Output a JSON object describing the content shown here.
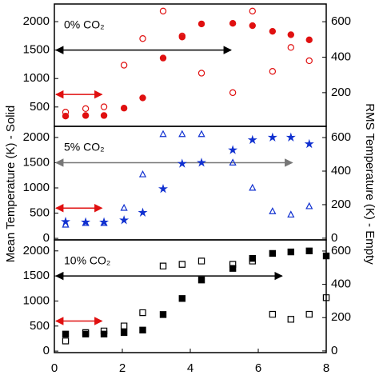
{
  "chart_data": [
    {
      "type": "scatter",
      "title": "0% CO₂",
      "ylabel": "Mean Temperature (K) - Solid",
      "y2label": "RMS Temperature (K) - Empty",
      "ylim": [
        160,
        2310
      ],
      "yticks": [
        500,
        1000,
        1500,
        2000
      ],
      "y2lim": [
        10,
        700
      ],
      "y2ticks": [
        200,
        400,
        600
      ],
      "xlim": [
        0,
        8
      ],
      "series": [
        {
          "color": "#e01010",
          "marker": "circle",
          "filled": true,
          "x": [
            0.33,
            0.92,
            1.46,
            2.05,
            2.6,
            3.2,
            3.76,
            4.33,
            5.25,
            5.83,
            6.42,
            6.96,
            7.5
          ],
          "values": [
            340,
            350,
            350,
            480,
            660,
            1360,
            1730,
            1960,
            1970,
            1930,
            1830,
            1770,
            1680
          ]
        },
        {
          "color": "#e01010",
          "marker": "circle",
          "filled": false,
          "axis": "y2",
          "x": [
            0.33,
            0.92,
            1.46,
            2.05,
            2.6,
            3.2,
            3.76,
            4.33,
            5.25,
            5.83,
            6.42,
            6.96,
            7.5
          ],
          "values": [
            90,
            110,
            120,
            355,
            505,
            660,
            520,
            310,
            200,
            660,
            320,
            455,
            380
          ]
        }
      ],
      "arrows": [
        {
          "y": 720,
          "x": [
            0,
            1.4
          ],
          "color": "#e01010"
        },
        {
          "y": 1500,
          "x": [
            0,
            5.2
          ],
          "color": "#000000"
        }
      ]
    },
    {
      "type": "scatter",
      "title": "5% CO₂",
      "ylim": [
        -30,
        2220
      ],
      "yticks": [
        0,
        500,
        1000,
        1500,
        2000
      ],
      "y2lim": [
        -10,
        667
      ],
      "y2ticks": [
        0,
        200,
        400,
        600
      ],
      "xlim": [
        0,
        8
      ],
      "series": [
        {
          "color": "#1030d0",
          "marker": "star",
          "filled": true,
          "x": [
            0.33,
            0.92,
            1.46,
            2.05,
            2.6,
            3.2,
            3.76,
            4.33,
            5.25,
            5.83,
            6.42,
            6.96,
            7.5
          ],
          "values": [
            330,
            320,
            320,
            360,
            510,
            980,
            1480,
            1500,
            1750,
            1950,
            2000,
            2000,
            1870
          ]
        },
        {
          "color": "#1030d0",
          "marker": "triangle",
          "filled": false,
          "axis": "y2",
          "x": [
            0.33,
            0.92,
            1.46,
            2.05,
            2.6,
            3.2,
            3.76,
            4.33,
            5.25,
            5.83,
            6.42,
            6.96,
            7.5
          ],
          "values": [
            80,
            90,
            90,
            180,
            380,
            620,
            620,
            620,
            450,
            300,
            160,
            140,
            190
          ]
        }
      ],
      "arrows": [
        {
          "y": 600,
          "x": [
            0,
            1.4
          ],
          "color": "#e01010"
        },
        {
          "y": 1500,
          "x": [
            0,
            7.0
          ],
          "color": "#777777"
        }
      ]
    },
    {
      "type": "scatter",
      "title": "10% CO₂",
      "ylim": [
        -30,
        2220
      ],
      "yticks": [
        0,
        500,
        1000,
        1500,
        2000
      ],
      "y2lim": [
        -10,
        667
      ],
      "y2ticks": [
        0,
        200,
        400,
        600
      ],
      "xlim": [
        0,
        8
      ],
      "xticks": [
        0,
        2,
        4,
        6,
        8
      ],
      "series": [
        {
          "color": "#000000",
          "marker": "square",
          "filled": true,
          "x": [
            0.33,
            0.92,
            1.46,
            2.05,
            2.6,
            3.2,
            3.76,
            4.33,
            5.25,
            5.83,
            6.42,
            6.96,
            7.5,
            8.0
          ],
          "values": [
            340,
            340,
            340,
            370,
            420,
            730,
            1050,
            1420,
            1650,
            1850,
            1950,
            1980,
            2000,
            1900
          ]
        },
        {
          "color": "#000000",
          "marker": "square",
          "filled": false,
          "axis": "y2",
          "x": [
            0.33,
            0.92,
            1.46,
            2.05,
            2.6,
            3.2,
            3.76,
            4.33,
            5.25,
            5.83,
            6.42,
            6.96,
            7.5,
            8.0
          ],
          "values": [
            60,
            110,
            120,
            150,
            230,
            510,
            520,
            540,
            520,
            540,
            220,
            190,
            220,
            320
          ]
        }
      ],
      "arrows": [
        {
          "y": 600,
          "x": [
            0,
            1.4
          ],
          "color": "#e01010"
        },
        {
          "y": 1500,
          "x": [
            0,
            6.7
          ],
          "color": "#000000"
        }
      ]
    }
  ]
}
